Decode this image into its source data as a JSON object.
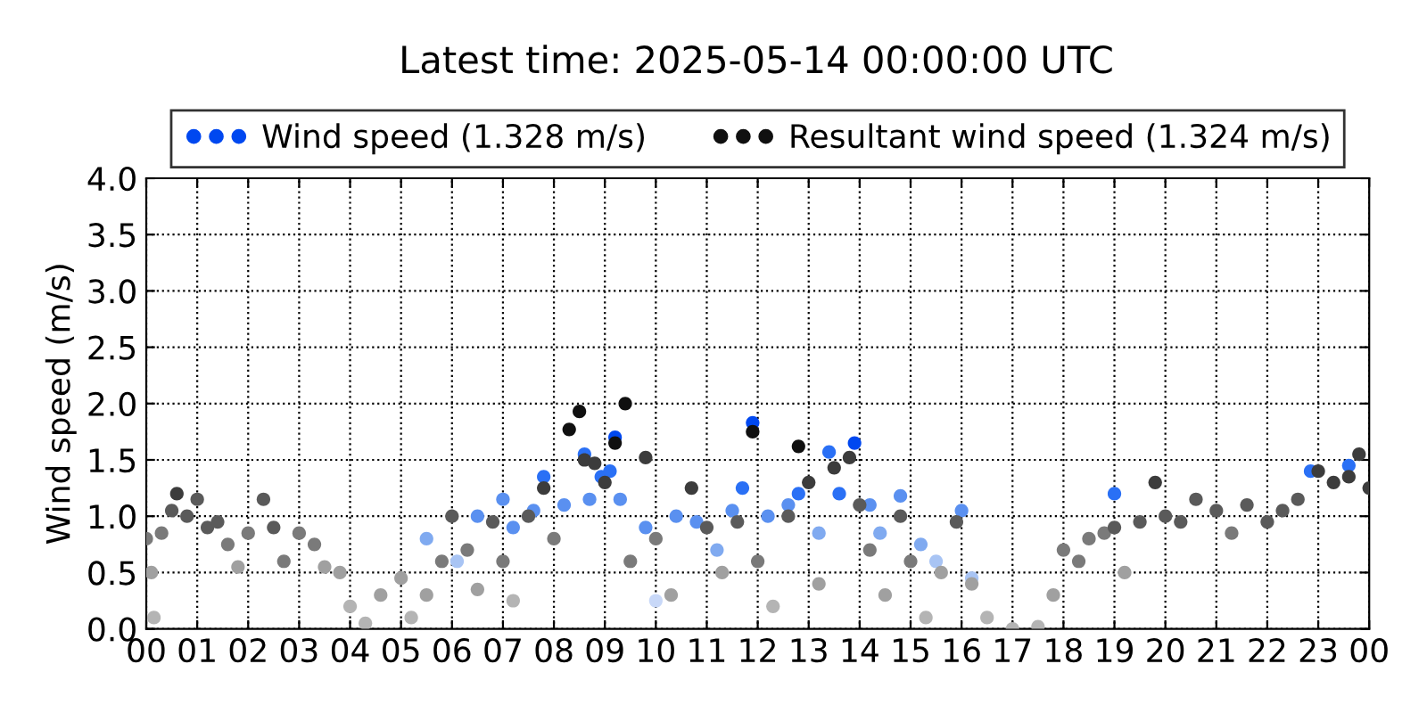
{
  "chart_data": {
    "type": "scatter",
    "title": "Latest time: 2025-05-14 00:00:00 UTC",
    "ylabel": "Wind speed (m/s)",
    "xlim": [
      0,
      24
    ],
    "ylim": [
      0,
      4
    ],
    "xticks": [
      {
        "value": 0,
        "label": "00"
      },
      {
        "value": 1,
        "label": "01"
      },
      {
        "value": 2,
        "label": "02"
      },
      {
        "value": 3,
        "label": "03"
      },
      {
        "value": 4,
        "label": "04"
      },
      {
        "value": 5,
        "label": "05"
      },
      {
        "value": 6,
        "label": "06"
      },
      {
        "value": 7,
        "label": "07"
      },
      {
        "value": 8,
        "label": "08"
      },
      {
        "value": 9,
        "label": "09"
      },
      {
        "value": 10,
        "label": "10"
      },
      {
        "value": 11,
        "label": "11"
      },
      {
        "value": 12,
        "label": "12"
      },
      {
        "value": 13,
        "label": "13"
      },
      {
        "value": 14,
        "label": "14"
      },
      {
        "value": 15,
        "label": "15"
      },
      {
        "value": 16,
        "label": "16"
      },
      {
        "value": 17,
        "label": "17"
      },
      {
        "value": 18,
        "label": "18"
      },
      {
        "value": 19,
        "label": "19"
      },
      {
        "value": 20,
        "label": "20"
      },
      {
        "value": 21,
        "label": "21"
      },
      {
        "value": 22,
        "label": "22"
      },
      {
        "value": 23,
        "label": "23"
      },
      {
        "value": 24,
        "label": "00"
      }
    ],
    "yticks": [
      {
        "value": 0,
        "label": "0.0"
      },
      {
        "value": 0.5,
        "label": "0.5"
      },
      {
        "value": 1,
        "label": "1.0"
      },
      {
        "value": 1.5,
        "label": "1.5"
      },
      {
        "value": 2,
        "label": "2.0"
      },
      {
        "value": 2.5,
        "label": "2.5"
      },
      {
        "value": 3,
        "label": "3.0"
      },
      {
        "value": 3.5,
        "label": "3.5"
      },
      {
        "value": 4,
        "label": "4.0"
      }
    ],
    "grid": true,
    "legend": "top",
    "marker": "circle",
    "series": [
      {
        "name": "Wind speed (1.328 m/s)",
        "color": "#0048f0",
        "x": [
          5.5,
          6.1,
          6.5,
          7.0,
          7.2,
          7.6,
          7.8,
          8.2,
          8.6,
          8.7,
          8.93,
          9.1,
          9.2,
          9.3,
          9.8,
          10.0,
          10.4,
          10.8,
          11.2,
          11.5,
          11.7,
          11.9,
          12.2,
          12.6,
          12.8,
          13.2,
          13.4,
          13.6,
          13.9,
          14.2,
          14.4,
          14.8,
          15.2,
          15.5,
          16.0,
          16.2,
          19.0,
          22.85,
          23.6
        ],
        "values": [
          0.8,
          0.6,
          1.0,
          1.15,
          0.9,
          1.05,
          1.35,
          1.1,
          1.55,
          1.15,
          1.35,
          1.4,
          1.7,
          1.15,
          0.9,
          0.25,
          1.0,
          0.95,
          0.7,
          1.05,
          1.25,
          1.83,
          1.0,
          1.1,
          1.2,
          0.85,
          1.57,
          1.2,
          1.65,
          1.1,
          0.85,
          1.18,
          0.75,
          0.6,
          1.05,
          0.45,
          1.2,
          1.4,
          1.45
        ],
        "colors": [
          "#80aaf0",
          "#a8c4f4",
          "#5a90f0",
          "#5a90f0",
          "#5a90f0",
          "#5a90f0",
          "#2a70f5",
          "#5a90f0",
          "#2a70f5",
          "#5a90f0",
          "#2a70f5",
          "#2a70f5",
          "#0048f0",
          "#5a90f0",
          "#5a90f0",
          "#c8d8f8",
          "#5a90f0",
          "#5a90f0",
          "#80aaf0",
          "#5a90f0",
          "#2a70f5",
          "#0048f0",
          "#5a90f0",
          "#5a90f0",
          "#2a70f5",
          "#80aaf0",
          "#2a70f5",
          "#2a70f5",
          "#0048f0",
          "#5a90f0",
          "#80aaf0",
          "#5a90f0",
          "#80aaf0",
          "#a8c4f4",
          "#5a90f0",
          "#a8c4f4",
          "#2a70f5",
          "#2a70f5",
          "#2a70f5"
        ]
      },
      {
        "name": "Resultant wind speed (1.324 m/s)",
        "color": "#101010",
        "x": [
          0.0,
          0.1,
          0.15,
          0.3,
          0.5,
          0.6,
          0.8,
          1.0,
          1.2,
          1.4,
          1.6,
          1.8,
          2.0,
          2.3,
          2.5,
          2.7,
          3.0,
          3.3,
          3.5,
          3.8,
          4.0,
          4.3,
          4.6,
          5.0,
          5.2,
          5.5,
          5.8,
          6.0,
          6.3,
          6.5,
          6.8,
          7.0,
          7.2,
          7.5,
          7.8,
          8.0,
          8.3,
          8.5,
          8.6,
          8.8,
          9.0,
          9.2,
          9.4,
          9.5,
          9.8,
          10.0,
          10.3,
          10.7,
          11.0,
          11.3,
          11.6,
          11.9,
          12.0,
          12.3,
          12.6,
          12.8,
          13.0,
          13.2,
          13.5,
          13.8,
          14.0,
          14.2,
          14.5,
          14.8,
          15.0,
          15.3,
          15.6,
          15.9,
          16.2,
          16.5,
          17.0,
          17.5,
          17.8,
          18.0,
          18.3,
          18.5,
          18.8,
          19.0,
          19.2,
          19.5,
          19.8,
          20.0,
          20.3,
          20.6,
          21.0,
          21.3,
          21.6,
          22.0,
          22.3,
          22.6,
          23.0,
          23.3,
          23.6,
          23.8,
          24.0
        ],
        "values": [
          0.8,
          0.5,
          0.1,
          0.85,
          1.05,
          1.2,
          1.0,
          1.15,
          0.9,
          0.95,
          0.75,
          0.55,
          0.85,
          1.15,
          0.9,
          0.6,
          0.85,
          0.75,
          0.55,
          0.5,
          0.2,
          0.05,
          0.3,
          0.45,
          0.1,
          0.3,
          0.6,
          1.0,
          0.7,
          0.35,
          0.95,
          0.6,
          0.25,
          1.0,
          1.25,
          0.8,
          1.77,
          1.93,
          1.5,
          1.47,
          1.3,
          1.65,
          2.0,
          0.6,
          1.52,
          0.8,
          0.3,
          1.25,
          0.9,
          0.5,
          0.95,
          1.75,
          0.6,
          0.2,
          1.0,
          1.62,
          1.3,
          0.4,
          1.43,
          1.52,
          1.1,
          0.7,
          0.3,
          1.0,
          0.6,
          0.1,
          0.5,
          0.95,
          0.4,
          0.1,
          0.0,
          0.02,
          0.3,
          0.7,
          0.6,
          0.8,
          0.85,
          0.9,
          0.5,
          0.95,
          1.3,
          1.0,
          0.95,
          1.15,
          1.05,
          0.85,
          1.1,
          0.95,
          1.05,
          1.15,
          1.4,
          1.3,
          1.35,
          1.55,
          1.25
        ],
        "colors": [
          "#7a7a7a",
          "#a0a0a0",
          "#b4b4b4",
          "#7a7a7a",
          "#5a5a5a",
          "#3c3c3c",
          "#5a5a5a",
          "#5a5a5a",
          "#5a5a5a",
          "#5a5a5a",
          "#7a7a7a",
          "#a0a0a0",
          "#7a7a7a",
          "#5a5a5a",
          "#5a5a5a",
          "#7a7a7a",
          "#7a7a7a",
          "#7a7a7a",
          "#a0a0a0",
          "#a0a0a0",
          "#b4b4b4",
          "#b4b4b4",
          "#a0a0a0",
          "#a0a0a0",
          "#b4b4b4",
          "#a0a0a0",
          "#7a7a7a",
          "#5a5a5a",
          "#7a7a7a",
          "#a0a0a0",
          "#5a5a5a",
          "#7a7a7a",
          "#b4b4b4",
          "#5a5a5a",
          "#3c3c3c",
          "#7a7a7a",
          "#101010",
          "#101010",
          "#3c3c3c",
          "#3c3c3c",
          "#3c3c3c",
          "#101010",
          "#101010",
          "#7a7a7a",
          "#3c3c3c",
          "#7a7a7a",
          "#a0a0a0",
          "#3c3c3c",
          "#5a5a5a",
          "#a0a0a0",
          "#5a5a5a",
          "#101010",
          "#7a7a7a",
          "#b4b4b4",
          "#5a5a5a",
          "#101010",
          "#3c3c3c",
          "#a0a0a0",
          "#3c3c3c",
          "#3c3c3c",
          "#5a5a5a",
          "#7a7a7a",
          "#a0a0a0",
          "#5a5a5a",
          "#7a7a7a",
          "#b4b4b4",
          "#a0a0a0",
          "#5a5a5a",
          "#a0a0a0",
          "#b4b4b4",
          "#b4b4b4",
          "#b4b4b4",
          "#a0a0a0",
          "#7a7a7a",
          "#7a7a7a",
          "#7a7a7a",
          "#7a7a7a",
          "#5a5a5a",
          "#a0a0a0",
          "#5a5a5a",
          "#3c3c3c",
          "#5a5a5a",
          "#5a5a5a",
          "#5a5a5a",
          "#5a5a5a",
          "#7a7a7a",
          "#5a5a5a",
          "#5a5a5a",
          "#5a5a5a",
          "#5a5a5a",
          "#3c3c3c",
          "#3c3c3c",
          "#3c3c3c",
          "#3c3c3c",
          "#3c3c3c"
        ]
      }
    ]
  }
}
